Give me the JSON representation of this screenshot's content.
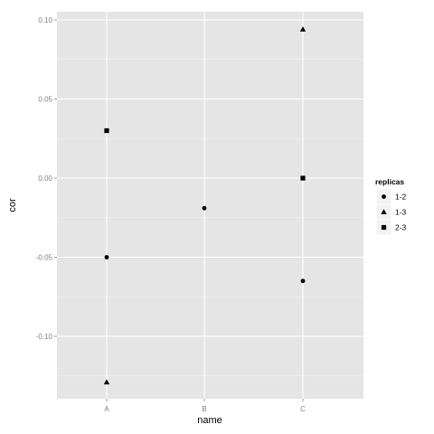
{
  "chart_data": {
    "type": "scatter",
    "xlabel": "name",
    "ylabel": "cor",
    "categories": [
      "A",
      "B",
      "C"
    ],
    "ylim": [
      -0.14,
      0.105
    ],
    "y_ticks": [
      0.1,
      0.05,
      0.0,
      -0.05,
      -0.1
    ],
    "y_tick_labels": [
      "0.10",
      "0.05",
      "0.00",
      "-0.05",
      "-0.10"
    ],
    "grid": true,
    "background": "#e5e5e5",
    "grid_color": "#ffffff",
    "legend": {
      "title": "replicas",
      "placement": "right"
    },
    "series": [
      {
        "name": "1-2",
        "shape": "circle",
        "points": [
          {
            "x": "A",
            "y": -0.05
          },
          {
            "x": "B",
            "y": -0.019
          },
          {
            "x": "C",
            "y": -0.065
          }
        ]
      },
      {
        "name": "1-3",
        "shape": "triangle",
        "points": [
          {
            "x": "A",
            "y": -0.129
          },
          {
            "x": "C",
            "y": 0.094
          }
        ]
      },
      {
        "name": "2-3",
        "shape": "square",
        "points": [
          {
            "x": "A",
            "y": 0.03
          },
          {
            "x": "C",
            "y": 0.0
          }
        ]
      }
    ]
  }
}
